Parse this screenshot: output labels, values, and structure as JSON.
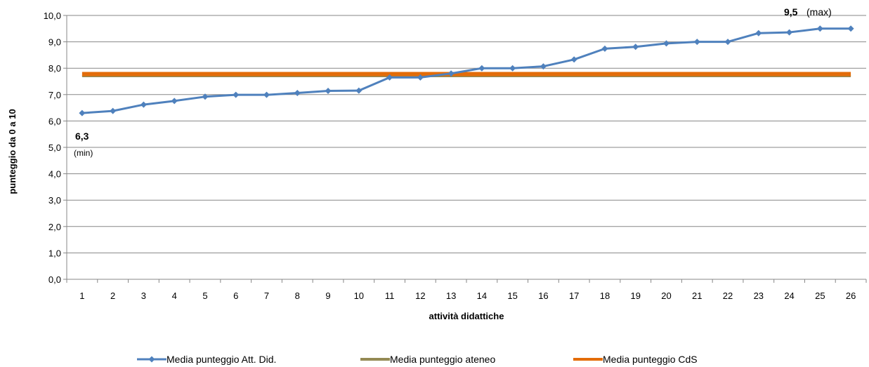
{
  "chart_data": {
    "type": "line",
    "title": "",
    "xlabel": "attività didattiche",
    "ylabel": "punteggio da 0 a 10",
    "categories": [
      "1",
      "2",
      "3",
      "4",
      "5",
      "6",
      "7",
      "8",
      "9",
      "10",
      "11",
      "12",
      "13",
      "14",
      "15",
      "16",
      "17",
      "18",
      "19",
      "20",
      "21",
      "22",
      "23",
      "24",
      "25",
      "26"
    ],
    "ylim": [
      0,
      10
    ],
    "ytick_step": 1,
    "ytick_labels": [
      "0,0",
      "1,0",
      "2,0",
      "3,0",
      "4,0",
      "5,0",
      "6,0",
      "7,0",
      "8,0",
      "9,0",
      "10,0"
    ],
    "grid": true,
    "legend_position": "bottom",
    "series": [
      {
        "name": "Media punteggio Att. Did.",
        "color": "#4F81BD",
        "marker": "diamond",
        "values": [
          6.3,
          6.38,
          6.62,
          6.76,
          6.92,
          6.99,
          6.99,
          7.06,
          7.14,
          7.15,
          7.65,
          7.65,
          7.8,
          8.0,
          8.0,
          8.07,
          8.33,
          8.74,
          8.81,
          8.94,
          9.0,
          9.0,
          9.33,
          9.36,
          9.5,
          9.5
        ]
      },
      {
        "name": "Media punteggio ateneo",
        "color": "#948A54",
        "marker": "none",
        "values": [
          7.7,
          7.7,
          7.7,
          7.7,
          7.7,
          7.7,
          7.7,
          7.7,
          7.7,
          7.7,
          7.7,
          7.7,
          7.7,
          7.7,
          7.7,
          7.7,
          7.7,
          7.7,
          7.7,
          7.7,
          7.7,
          7.7,
          7.7,
          7.7,
          7.7,
          7.7
        ]
      },
      {
        "name": "Media punteggio CdS",
        "color": "#E36C09",
        "marker": "none",
        "values": [
          7.78,
          7.78,
          7.78,
          7.78,
          7.78,
          7.78,
          7.78,
          7.78,
          7.78,
          7.78,
          7.78,
          7.78,
          7.78,
          7.78,
          7.78,
          7.78,
          7.78,
          7.78,
          7.78,
          7.78,
          7.78,
          7.78,
          7.78,
          7.78,
          7.78,
          7.78
        ]
      }
    ],
    "annotations": {
      "min_value": "6,3",
      "min_label": "(min)",
      "max_value": "9,5",
      "max_label": "(max)"
    }
  }
}
